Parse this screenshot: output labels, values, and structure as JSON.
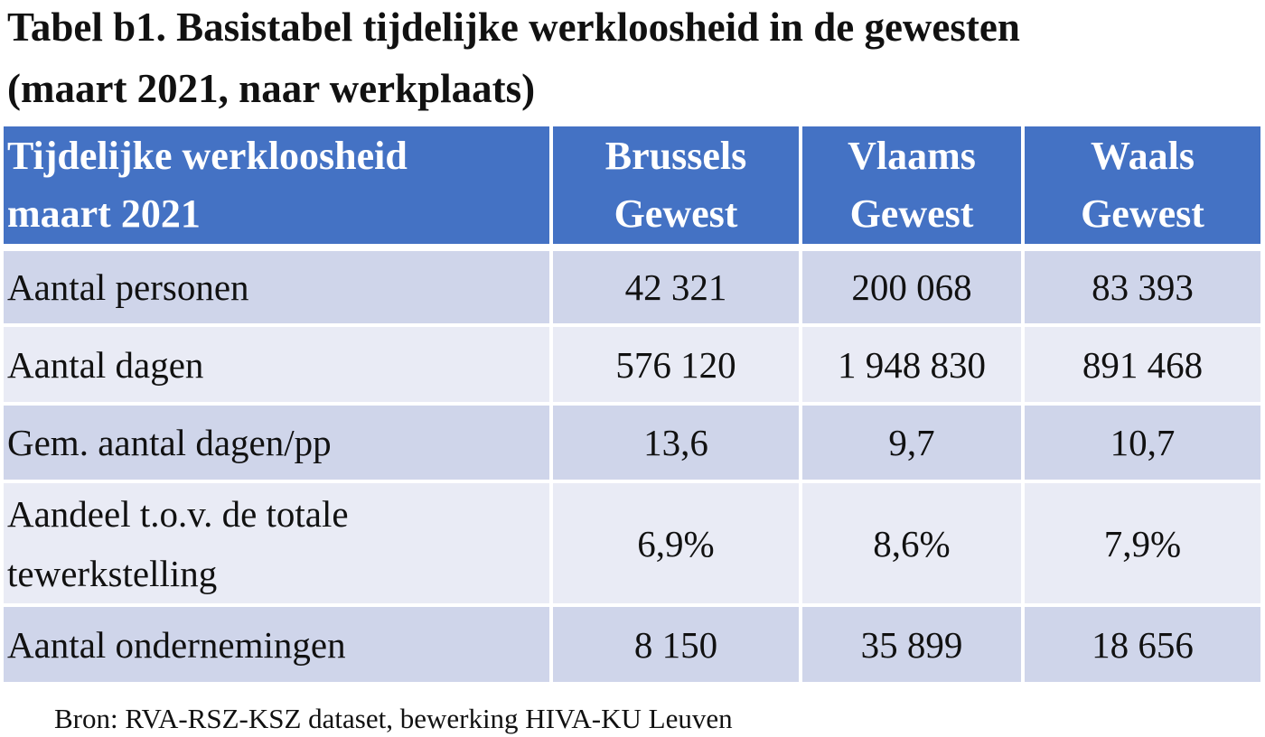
{
  "title": [
    "Tabel b1. Basistabel tijdelijke werkloosheid in de gewesten",
    "(maart 2021, naar werkplaats)"
  ],
  "table": {
    "header": [
      [
        "Tijdelijke werkloosheid",
        "maart 2021"
      ],
      [
        "Brussels",
        "Gewest"
      ],
      [
        "Vlaams",
        "Gewest"
      ],
      [
        "Waals",
        "Gewest"
      ]
    ],
    "rows": [
      [
        [
          "Aantal personen"
        ],
        [
          "42 321"
        ],
        [
          "200 068"
        ],
        [
          "83 393"
        ]
      ],
      [
        [
          "Aantal dagen"
        ],
        [
          "576 120"
        ],
        [
          "1 948 830"
        ],
        [
          "891 468"
        ]
      ],
      [
        [
          "Gem. aantal dagen/pp"
        ],
        [
          "13,6"
        ],
        [
          "9,7"
        ],
        [
          "10,7"
        ]
      ],
      [
        [
          "Aandeel t.o.v. de totale",
          "tewerkstelling"
        ],
        [
          "6,9%"
        ],
        [
          "8,6%"
        ],
        [
          "7,9%"
        ]
      ],
      [
        [
          "Aantal ondernemingen"
        ],
        [
          "8 150"
        ],
        [
          "35 899"
        ],
        [
          "18 656"
        ]
      ]
    ]
  },
  "source": "Bron: RVA-RSZ-KSZ dataset, bewerking HIVA-KU Leuven"
}
